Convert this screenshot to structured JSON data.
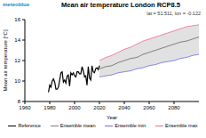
{
  "chart_data": {
    "type": "line",
    "title": "Mean air temperature London RCP8.5",
    "subtitle": "lat = 51.511, lon = -0.122",
    "annotations": [
      "meteoblue"
    ],
    "x_label": "Year",
    "y_label": "Mean air temperature [°C]",
    "xlim": [
      1960,
      2100
    ],
    "xticks": [
      1960,
      1980,
      2000,
      2020,
      2040,
      2060,
      2080
    ],
    "ylim": [
      8,
      16
    ],
    "yticks": [
      8,
      10,
      12,
      14,
      16
    ],
    "grid": false,
    "legend": "bottom",
    "series": [
      {
        "name": "Reference",
        "color": "#000000",
        "x": [
          1979,
          1980,
          1981,
          1982,
          1983,
          1984,
          1985,
          1986,
          1987,
          1988,
          1989,
          1990,
          1991,
          1992,
          1993,
          1994,
          1995,
          1996,
          1997,
          1998,
          1999,
          2000,
          2001,
          2002,
          2003,
          2004,
          2005,
          2006,
          2007,
          2008,
          2009,
          2010,
          2011,
          2012,
          2013,
          2014,
          2015,
          2016,
          2017,
          2018,
          2019,
          2020
        ],
        "values": [
          8.9,
          9.6,
          9.4,
          10.0,
          10.2,
          9.9,
          9.2,
          9.2,
          9.4,
          10.1,
          10.8,
          10.9,
          9.9,
          10.1,
          9.8,
          10.5,
          10.6,
          9.5,
          10.8,
          10.6,
          10.8,
          10.5,
          10.4,
          10.9,
          10.9,
          10.7,
          10.7,
          11.4,
          11.0,
          10.4,
          10.5,
          9.6,
          11.4,
          10.3,
          10.1,
          11.5,
          10.9,
          10.8,
          11.2,
          11.3,
          11.1,
          11.5
        ]
      },
      {
        "name": "Ensemble mean",
        "color": "#808080",
        "x": [
          2020,
          2025,
          2030,
          2035,
          2040,
          2045,
          2050,
          2055,
          2060,
          2065,
          2070,
          2075,
          2080,
          2085,
          2090,
          2095,
          2100
        ],
        "values": [
          11.2,
          11.4,
          11.5,
          11.8,
          12.0,
          12.2,
          12.3,
          12.6,
          12.8,
          13.0,
          13.2,
          13.4,
          13.6,
          13.8,
          13.9,
          14.1,
          14.3
        ]
      },
      {
        "name": "Ensemble min",
        "color": "#6b6bf0",
        "x": [
          2020,
          2025,
          2030,
          2035,
          2040,
          2045,
          2050,
          2055,
          2060,
          2065,
          2070,
          2075,
          2080,
          2085,
          2090,
          2095,
          2100
        ],
        "values": [
          10.4,
          10.5,
          10.6,
          10.8,
          10.9,
          11.0,
          11.2,
          11.3,
          11.5,
          11.6,
          11.8,
          11.9,
          12.0,
          12.2,
          12.3,
          12.5,
          12.6
        ]
      },
      {
        "name": "Ensemble max",
        "color": "#f06b8a",
        "x": [
          2020,
          2025,
          2030,
          2035,
          2040,
          2045,
          2050,
          2055,
          2060,
          2065,
          2070,
          2075,
          2080,
          2085,
          2090,
          2095,
          2100
        ],
        "values": [
          12.0,
          12.3,
          12.5,
          12.8,
          13.1,
          13.3,
          13.6,
          13.9,
          14.1,
          14.3,
          14.5,
          14.7,
          14.9,
          15.1,
          15.3,
          15.4,
          15.5
        ]
      }
    ]
  }
}
